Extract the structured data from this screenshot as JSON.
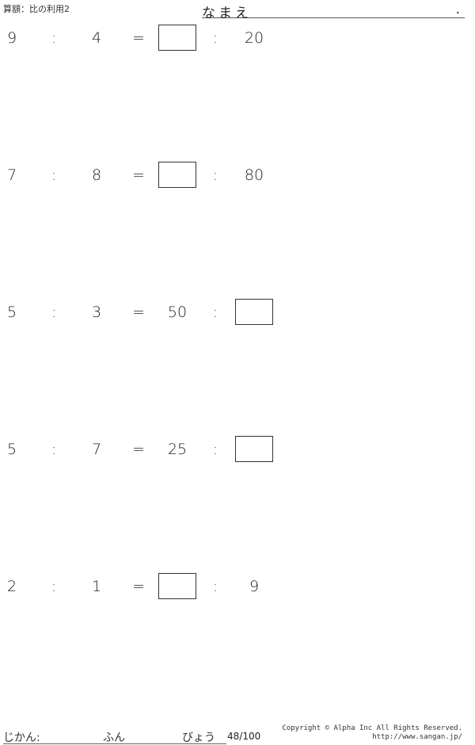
{
  "title": "算額：比の利用2",
  "name_label": "なまえ",
  "name_end": ".",
  "problems": [
    {
      "a": "9",
      "b": "4",
      "c": null,
      "d": "20"
    },
    {
      "a": "7",
      "b": "8",
      "c": null,
      "d": "80"
    },
    {
      "a": "5",
      "b": "3",
      "c": "50",
      "d": null
    },
    {
      "a": "5",
      "b": "7",
      "c": "25",
      "d": null
    },
    {
      "a": "2",
      "b": "1",
      "c": null,
      "d": "9"
    }
  ],
  "colon": ":",
  "equals": "=",
  "footer": {
    "time_label": "じかん:",
    "minutes_label": "ふん",
    "seconds_label": "びょう",
    "page": "48/100",
    "copyright": "Copyright © Alpha Inc All Rights Reserved.",
    "url": "http://www.sangan.jp/"
  }
}
